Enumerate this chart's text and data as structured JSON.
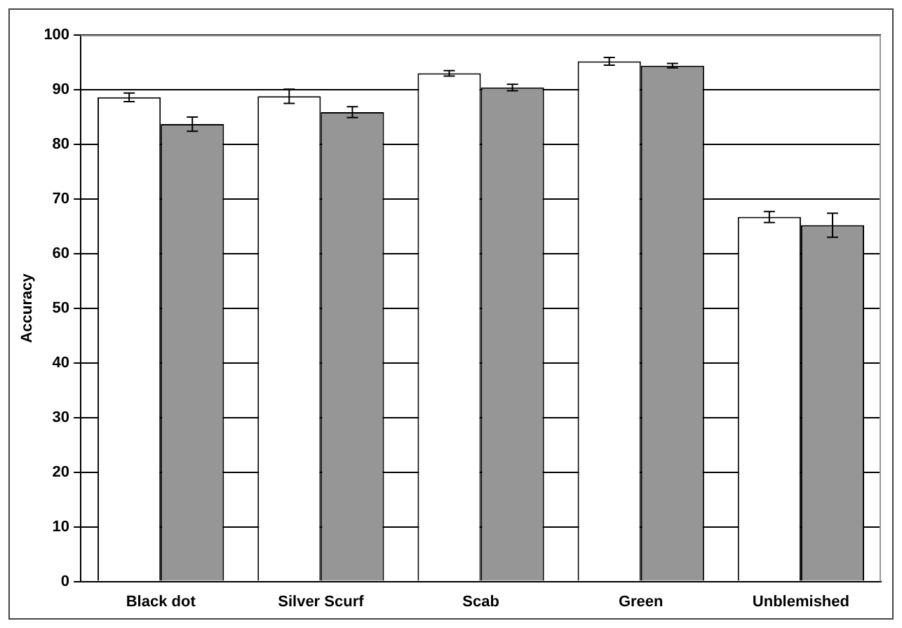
{
  "chart_data": {
    "type": "bar",
    "ylabel": "Accuracy",
    "categories": [
      "Black dot",
      "Silver Scurf",
      "Scab",
      "Green",
      "Unblemished"
    ],
    "series": [
      {
        "color": "#ffffff",
        "values": [
          88.6,
          88.8,
          93.0,
          95.2,
          66.7
        ],
        "errors": [
          0.8,
          1.3,
          0.5,
          0.7,
          1.0
        ]
      },
      {
        "color": "#969696",
        "values": [
          83.7,
          85.9,
          90.4,
          94.4,
          65.2
        ],
        "errors": [
          1.3,
          1.0,
          0.6,
          0.4,
          2.2
        ]
      }
    ],
    "ylim": [
      0,
      100
    ],
    "yticks": [
      0,
      10,
      20,
      30,
      40,
      50,
      60,
      70,
      80,
      90,
      100
    ],
    "grid": "y",
    "legend": false
  }
}
